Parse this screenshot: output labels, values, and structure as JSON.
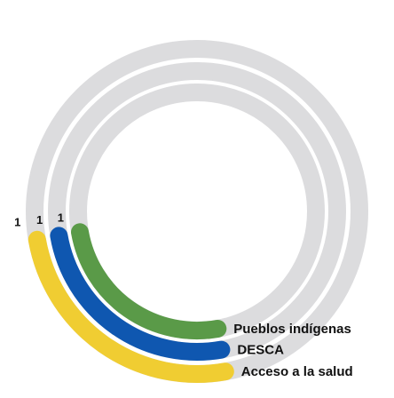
{
  "chart_data": {
    "type": "radial-bar",
    "title": "",
    "track_color": "#dcdcde",
    "categories": [
      "Pueblos indígenas",
      "DESCA",
      "Acceso a la salud"
    ],
    "series": [
      {
        "name": "Pueblos indígenas",
        "value": 1,
        "color": "#5a9a48"
      },
      {
        "name": "DESCA",
        "value": 1,
        "color": "#0f57b0"
      },
      {
        "name": "Acceso a la salud",
        "value": 1,
        "color": "#f0cd32"
      }
    ]
  }
}
